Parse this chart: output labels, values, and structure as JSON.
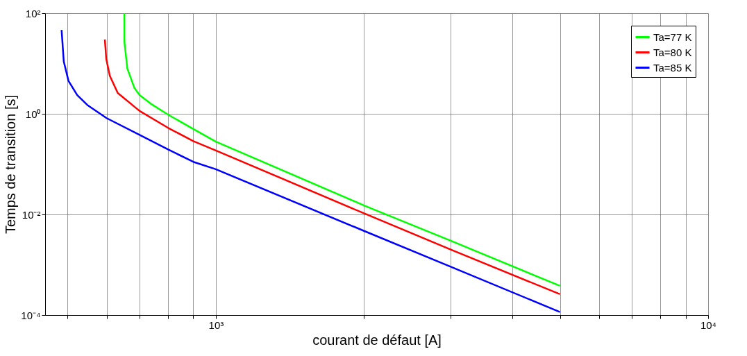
{
  "chart_data": {
    "type": "line",
    "xlabel": "courant de défaut [A]",
    "ylabel": "Temps de transition [s]",
    "log": "xy",
    "grid": true,
    "legend": "top right",
    "line_style": "solid",
    "marker": "none",
    "xlim": [
      450,
      10000
    ],
    "ylim": [
      0.0001,
      100
    ],
    "xticks": [
      {
        "value": 500,
        "label": null
      },
      {
        "value": 600,
        "label": null
      },
      {
        "value": 700,
        "label": null
      },
      {
        "value": 800,
        "label": null
      },
      {
        "value": 900,
        "label": null
      },
      {
        "value": 1000,
        "label": "10³"
      },
      {
        "value": 2000,
        "label": null
      },
      {
        "value": 3000,
        "label": null
      },
      {
        "value": 4000,
        "label": null
      },
      {
        "value": 5000,
        "label": null
      },
      {
        "value": 6000,
        "label": null
      },
      {
        "value": 7000,
        "label": null
      },
      {
        "value": 8000,
        "label": null
      },
      {
        "value": 9000,
        "label": null
      },
      {
        "value": 10000,
        "label": "10⁴"
      }
    ],
    "yticks": [
      {
        "value": 0.0001,
        "label": "10⁻⁴"
      },
      {
        "value": 0.01,
        "label": "10⁻²"
      },
      {
        "value": 1,
        "label": "10⁰"
      },
      {
        "value": 100,
        "label": "10²"
      }
    ],
    "series": [
      {
        "name": "Ta=77 K",
        "color": "#00ff00",
        "x": [
          652,
          652,
          661,
          683,
          700,
          738,
          800,
          900,
          1000,
          2000,
          3000,
          5000
        ],
        "values": [
          100,
          27,
          7.9,
          3.3,
          2.35,
          1.58,
          0.96,
          0.5,
          0.28,
          0.0151,
          0.003,
          0.00038
        ]
      },
      {
        "name": "Ta=80 K",
        "color": "#ff0000",
        "x": [
          595,
          599,
          609,
          632,
          700,
          800,
          900,
          1000,
          2000,
          3000,
          5000
        ],
        "values": [
          30,
          12.3,
          5.7,
          2.6,
          1.14,
          0.525,
          0.286,
          0.187,
          0.0105,
          0.002,
          0.00026
        ]
      },
      {
        "name": "Ta=85 K",
        "color": "#0000ff",
        "x": [
          486,
          491,
          502,
          523,
          548,
          600,
          700,
          800,
          900,
          1000,
          2000,
          3000,
          5000
        ],
        "values": [
          46.5,
          11,
          4.5,
          2.35,
          1.5,
          0.82,
          0.38,
          0.195,
          0.111,
          0.079,
          0.0047,
          0.00091,
          0.000115
        ]
      }
    ]
  }
}
